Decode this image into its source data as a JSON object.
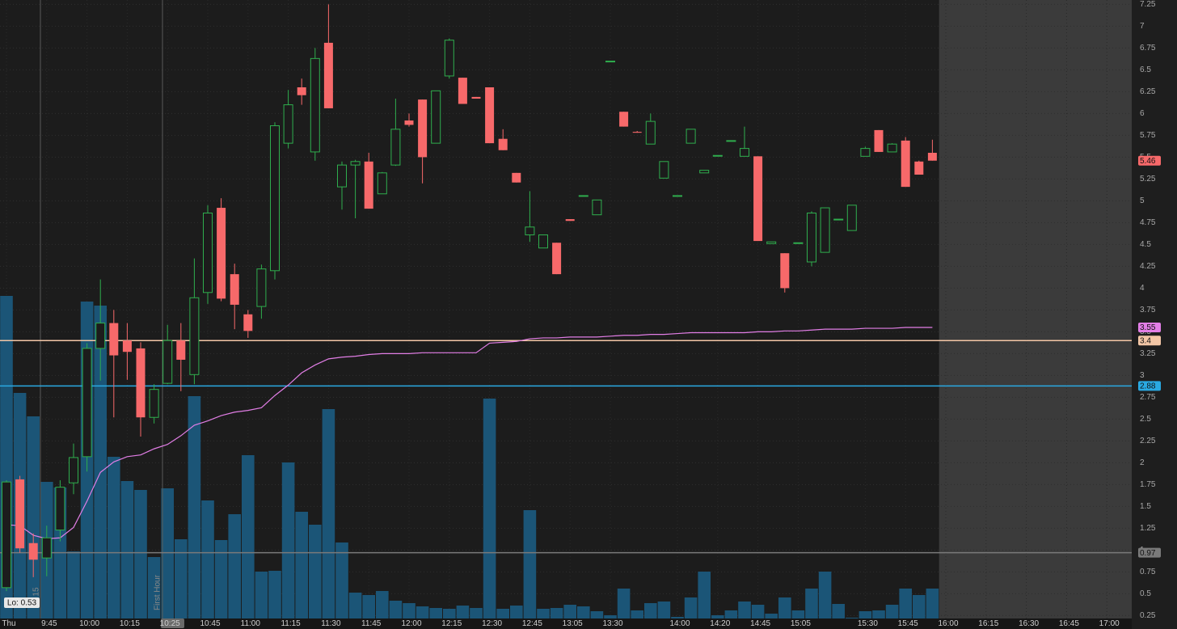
{
  "chart_data": {
    "type": "candlestick",
    "categories": [
      "Thu",
      null,
      null,
      "9:45",
      null,
      null,
      "10:00",
      null,
      null,
      "10:15",
      null,
      null,
      "10:25",
      null,
      null,
      "10:45",
      null,
      null,
      "11:00",
      null,
      null,
      "11:15",
      null,
      null,
      "11:30",
      null,
      null,
      "11:45",
      null,
      null,
      "12:00",
      null,
      null,
      "12:15",
      null,
      null,
      "12:30",
      null,
      null,
      "12:45",
      null,
      null,
      "13:05",
      null,
      null,
      "13:30",
      null,
      null,
      null,
      null,
      "14:00",
      null,
      null,
      "14:20",
      null,
      null,
      "14:45",
      null,
      null,
      "15:05",
      null,
      null,
      null,
      null,
      "15:30",
      null,
      null,
      "15:45",
      null,
      null,
      "16:00",
      null,
      null,
      "16:15",
      null,
      null,
      "16:30",
      null,
      null,
      "16:45",
      null,
      null,
      "17:00",
      null
    ],
    "open": [
      0.57,
      1.81,
      1.08,
      0.91,
      1.23,
      1.77,
      2.07,
      3.31,
      3.6,
      3.4,
      3.31,
      2.52,
      2.91,
      3.4,
      3.01,
      3.95,
      4.92,
      4.16,
      3.7,
      3.79,
      4.2,
      5.66,
      6.3,
      5.56,
      6.81,
      5.16,
      5.41,
      5.45,
      5.08,
      5.41,
      5.92,
      6.16,
      5.66,
      6.43,
      6.41,
      6.19,
      6.3,
      5.71,
      5.32,
      4.61,
      4.46,
      4.52,
      4.79,
      5.06,
      4.84,
      6.6,
      6.02,
      5.79,
      5.65,
      5.26,
      5.06,
      5.66,
      5.32,
      5.52,
      5.69,
      5.51,
      5.51,
      4.51,
      4.4,
      4.52,
      4.3,
      4.41,
      4.79,
      4.66,
      5.51,
      5.81,
      5.56,
      5.69,
      5.45,
      5.55,
      null,
      null,
      null,
      null,
      null,
      null,
      null,
      null,
      null,
      null,
      null,
      null,
      null,
      null
    ],
    "high": [
      1.8,
      1.85,
      1.19,
      1.28,
      1.8,
      2.22,
      3.37,
      4.1,
      3.75,
      3.6,
      3.38,
      2.9,
      3.58,
      3.6,
      4.34,
      4.95,
      5.03,
      4.28,
      3.75,
      4.27,
      5.9,
      6.27,
      6.4,
      6.75,
      7.25,
      5.45,
      5.47,
      5.55,
      5.33,
      6.17,
      6.0,
      6.16,
      6.26,
      6.86,
      6.41,
      6.19,
      6.3,
      5.82,
      5.32,
      5.11,
      4.61,
      4.52,
      4.79,
      5.06,
      5.01,
      6.6,
      6.02,
      5.8,
      6.0,
      5.45,
      5.06,
      5.82,
      5.35,
      5.52,
      5.69,
      5.85,
      5.51,
      4.53,
      4.4,
      4.52,
      4.88,
      4.92,
      4.79,
      4.95,
      5.62,
      5.81,
      5.66,
      5.73,
      5.46,
      5.7,
      null,
      null,
      null,
      null,
      null,
      null,
      null,
      null,
      null,
      null,
      null,
      null,
      null,
      null
    ],
    "low": [
      0.53,
      0.97,
      0.69,
      0.7,
      1.1,
      1.64,
      1.9,
      2.94,
      2.52,
      2.95,
      2.3,
      2.45,
      2.9,
      2.82,
      2.9,
      3.82,
      3.85,
      3.53,
      3.43,
      3.65,
      4.1,
      5.6,
      6.1,
      5.46,
      6.06,
      4.9,
      4.8,
      4.91,
      5.08,
      5.4,
      5.85,
      5.2,
      5.66,
      6.4,
      6.11,
      6.17,
      5.66,
      5.58,
      5.21,
      4.53,
      4.46,
      4.16,
      4.77,
      5.06,
      4.84,
      6.6,
      5.85,
      5.78,
      5.65,
      5.26,
      5.06,
      5.66,
      5.32,
      5.52,
      5.69,
      5.51,
      4.54,
      4.51,
      3.95,
      4.52,
      4.25,
      4.41,
      4.79,
      4.66,
      5.51,
      5.56,
      5.56,
      5.16,
      5.3,
      5.46,
      null,
      null,
      null,
      null,
      null,
      null,
      null,
      null,
      null,
      null,
      null,
      null,
      null,
      null
    ],
    "close": [
      1.78,
      1.02,
      0.89,
      1.14,
      1.72,
      2.06,
      3.31,
      3.6,
      3.23,
      3.27,
      2.52,
      2.84,
      3.4,
      3.18,
      3.89,
      4.86,
      3.88,
      3.81,
      3.51,
      4.22,
      5.86,
      6.1,
      6.21,
      6.63,
      6.06,
      5.41,
      5.45,
      4.91,
      5.32,
      5.82,
      5.87,
      5.5,
      6.26,
      6.84,
      6.11,
      6.17,
      5.66,
      5.58,
      5.21,
      4.7,
      4.61,
      4.16,
      4.77,
      5.06,
      5.01,
      6.6,
      5.85,
      5.78,
      5.91,
      5.45,
      5.06,
      5.82,
      5.35,
      5.52,
      5.69,
      5.6,
      4.54,
      4.53,
      4.0,
      4.52,
      4.86,
      4.92,
      4.79,
      4.95,
      5.6,
      5.56,
      5.65,
      5.16,
      5.3,
      5.46,
      null,
      null,
      null,
      null,
      null,
      null,
      null,
      null,
      null,
      null,
      null,
      null,
      null,
      null
    ],
    "up_color": "#2fae4e",
    "down_color": "#f7696a",
    "ylim": [
      0.1,
      7.3
    ],
    "yticks": [
      0.25,
      0.5,
      0.75,
      1,
      1.25,
      1.5,
      1.75,
      2,
      2.25,
      2.5,
      2.75,
      3,
      3.25,
      3.5,
      3.75,
      4,
      4.25,
      4.5,
      4.75,
      5,
      5.25,
      5.5,
      5.75,
      6,
      6.25,
      6.5,
      6.75,
      7,
      7.25
    ],
    "grid": true,
    "volume": {
      "color": "#1b5577",
      "ylim": [
        0,
        420
      ],
      "values": [
        399,
        279,
        250,
        169,
        162,
        83,
        392,
        387,
        200,
        170,
        159,
        76,
        161,
        98,
        275,
        146,
        97,
        129,
        202,
        58,
        59,
        193,
        132,
        116,
        259,
        94,
        32,
        29,
        34,
        22,
        19,
        15,
        13,
        12,
        16,
        13,
        272,
        12,
        16,
        134,
        12,
        13,
        17,
        15,
        9,
        4,
        37,
        10,
        19,
        21,
        2,
        26,
        58,
        4,
        10,
        21,
        17,
        6,
        26,
        10,
        37,
        58,
        18,
        1,
        9,
        10,
        17,
        37,
        29,
        37,
        null,
        null,
        null,
        null,
        null,
        null,
        null,
        null,
        null,
        null,
        null,
        null,
        null,
        null
      ]
    },
    "vwap": {
      "color": "#e27ee6",
      "values": [
        1.29,
        1.28,
        1.17,
        1.13,
        1.14,
        1.26,
        1.56,
        1.89,
        2.01,
        2.07,
        2.09,
        2.16,
        2.21,
        2.31,
        2.43,
        2.48,
        2.54,
        2.58,
        2.6,
        2.63,
        2.77,
        2.89,
        3.03,
        3.12,
        3.19,
        3.21,
        3.22,
        3.24,
        3.25,
        3.25,
        3.25,
        3.26,
        3.26,
        3.26,
        3.26,
        3.26,
        3.37,
        3.38,
        3.39,
        3.42,
        3.43,
        3.43,
        3.44,
        3.44,
        3.44,
        3.45,
        3.46,
        3.46,
        3.47,
        3.47,
        3.48,
        3.49,
        3.49,
        3.49,
        3.49,
        3.49,
        3.5,
        3.5,
        3.51,
        3.51,
        3.52,
        3.53,
        3.53,
        3.53,
        3.54,
        3.54,
        3.54,
        3.55,
        3.55,
        3.55,
        null,
        null,
        null,
        null,
        null,
        null,
        null,
        null,
        null,
        null,
        null,
        null,
        null,
        null
      ]
    },
    "levels": [
      {
        "value": 3.4,
        "color": "#f3c6a6"
      },
      {
        "value": 2.88,
        "color": "#2aa9e2"
      },
      {
        "value": 0.97,
        "color": "#7a7a7a"
      }
    ],
    "annotations": {
      "low_label": "Lo: 0.53",
      "session_label": "First Hour",
      "time_marker": "15"
    }
  }
}
